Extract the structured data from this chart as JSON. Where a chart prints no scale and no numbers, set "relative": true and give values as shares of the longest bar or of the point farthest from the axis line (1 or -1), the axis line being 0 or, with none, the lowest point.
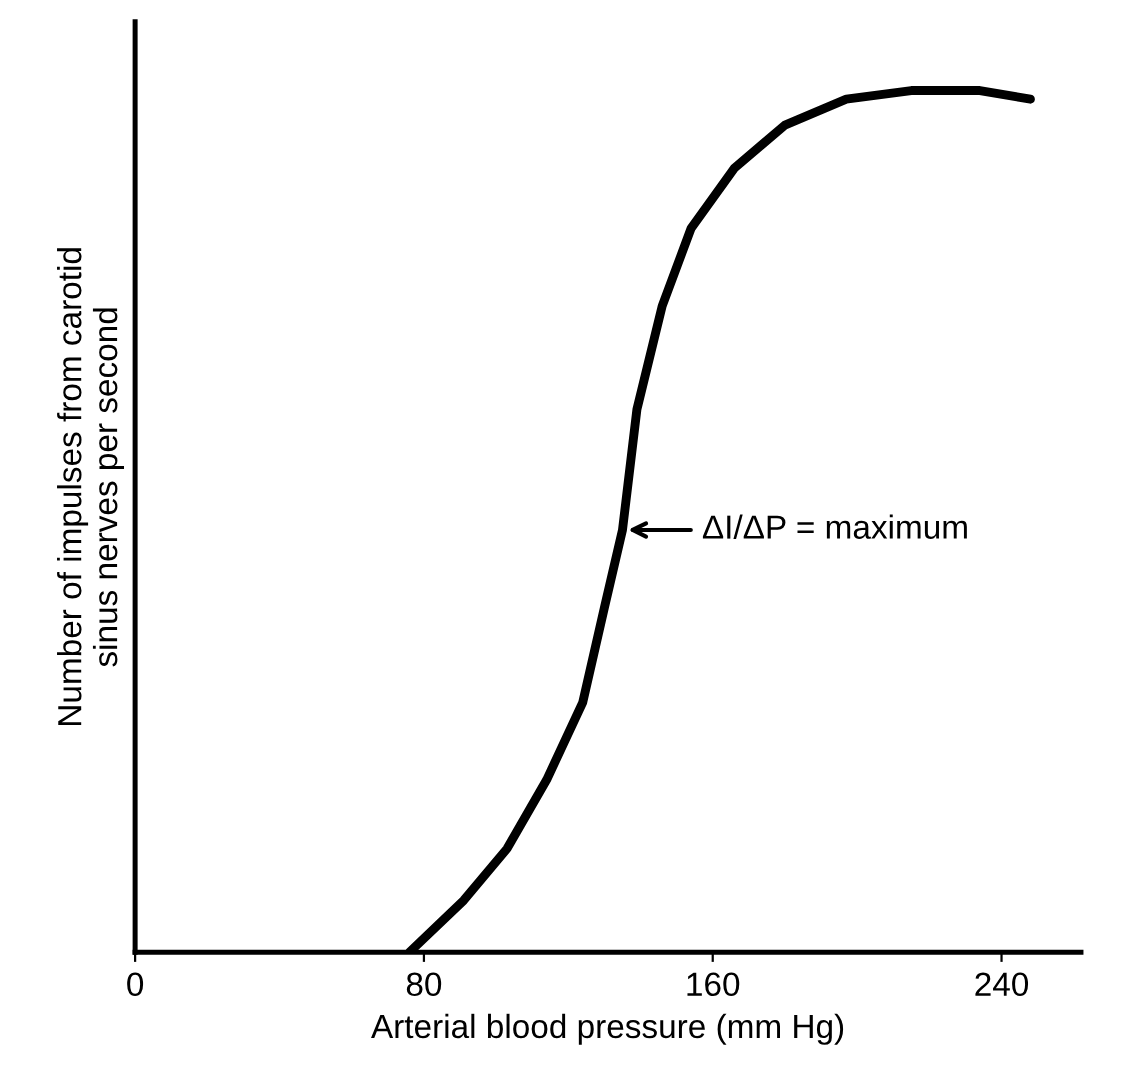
{
  "chart_data": {
    "type": "line",
    "relative": true,
    "xlabel": "Arterial blood pressure (mm Hg)",
    "ylabel": "Number of impulses from carotid\nsinus nerves per second",
    "x": [
      76,
      91,
      103,
      114,
      124,
      130,
      135,
      139,
      146,
      154,
      166,
      180,
      197,
      215,
      234,
      248
    ],
    "series": [
      {
        "color": "#000000",
        "values": [
          0,
          0.06,
          0.12,
          0.2,
          0.29,
          0.4,
          0.49,
          0.63,
          0.75,
          0.84,
          0.91,
          0.96,
          0.99,
          1,
          1,
          0.99
        ]
      }
    ],
    "xlim": [
      0,
      262
    ],
    "xticks": [
      0,
      80,
      160,
      240
    ],
    "annotations": [
      {
        "text": "ΔI/ΔP = maximum",
        "x": 135,
        "y": 0.49
      }
    ],
    "grid": false,
    "legend": false,
    "marker": "none",
    "line_style": "solid"
  }
}
